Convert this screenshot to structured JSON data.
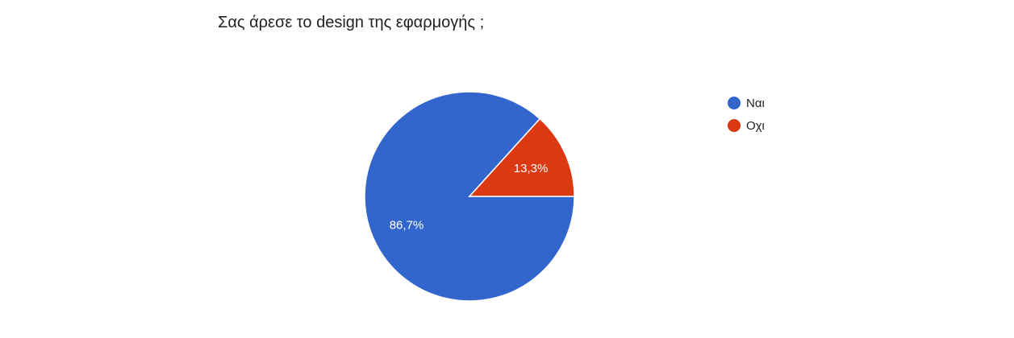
{
  "chart_data": {
    "type": "pie",
    "title": "Σας άρεσε το design της εφαρμογής ;",
    "legend_position": "right",
    "slices": [
      {
        "label": "Ναι",
        "value": 86.7,
        "display": "86,7%",
        "color": "#3366cc"
      },
      {
        "label": "Οχι",
        "value": 13.3,
        "display": "13,3%",
        "color": "#dc3912"
      }
    ]
  }
}
